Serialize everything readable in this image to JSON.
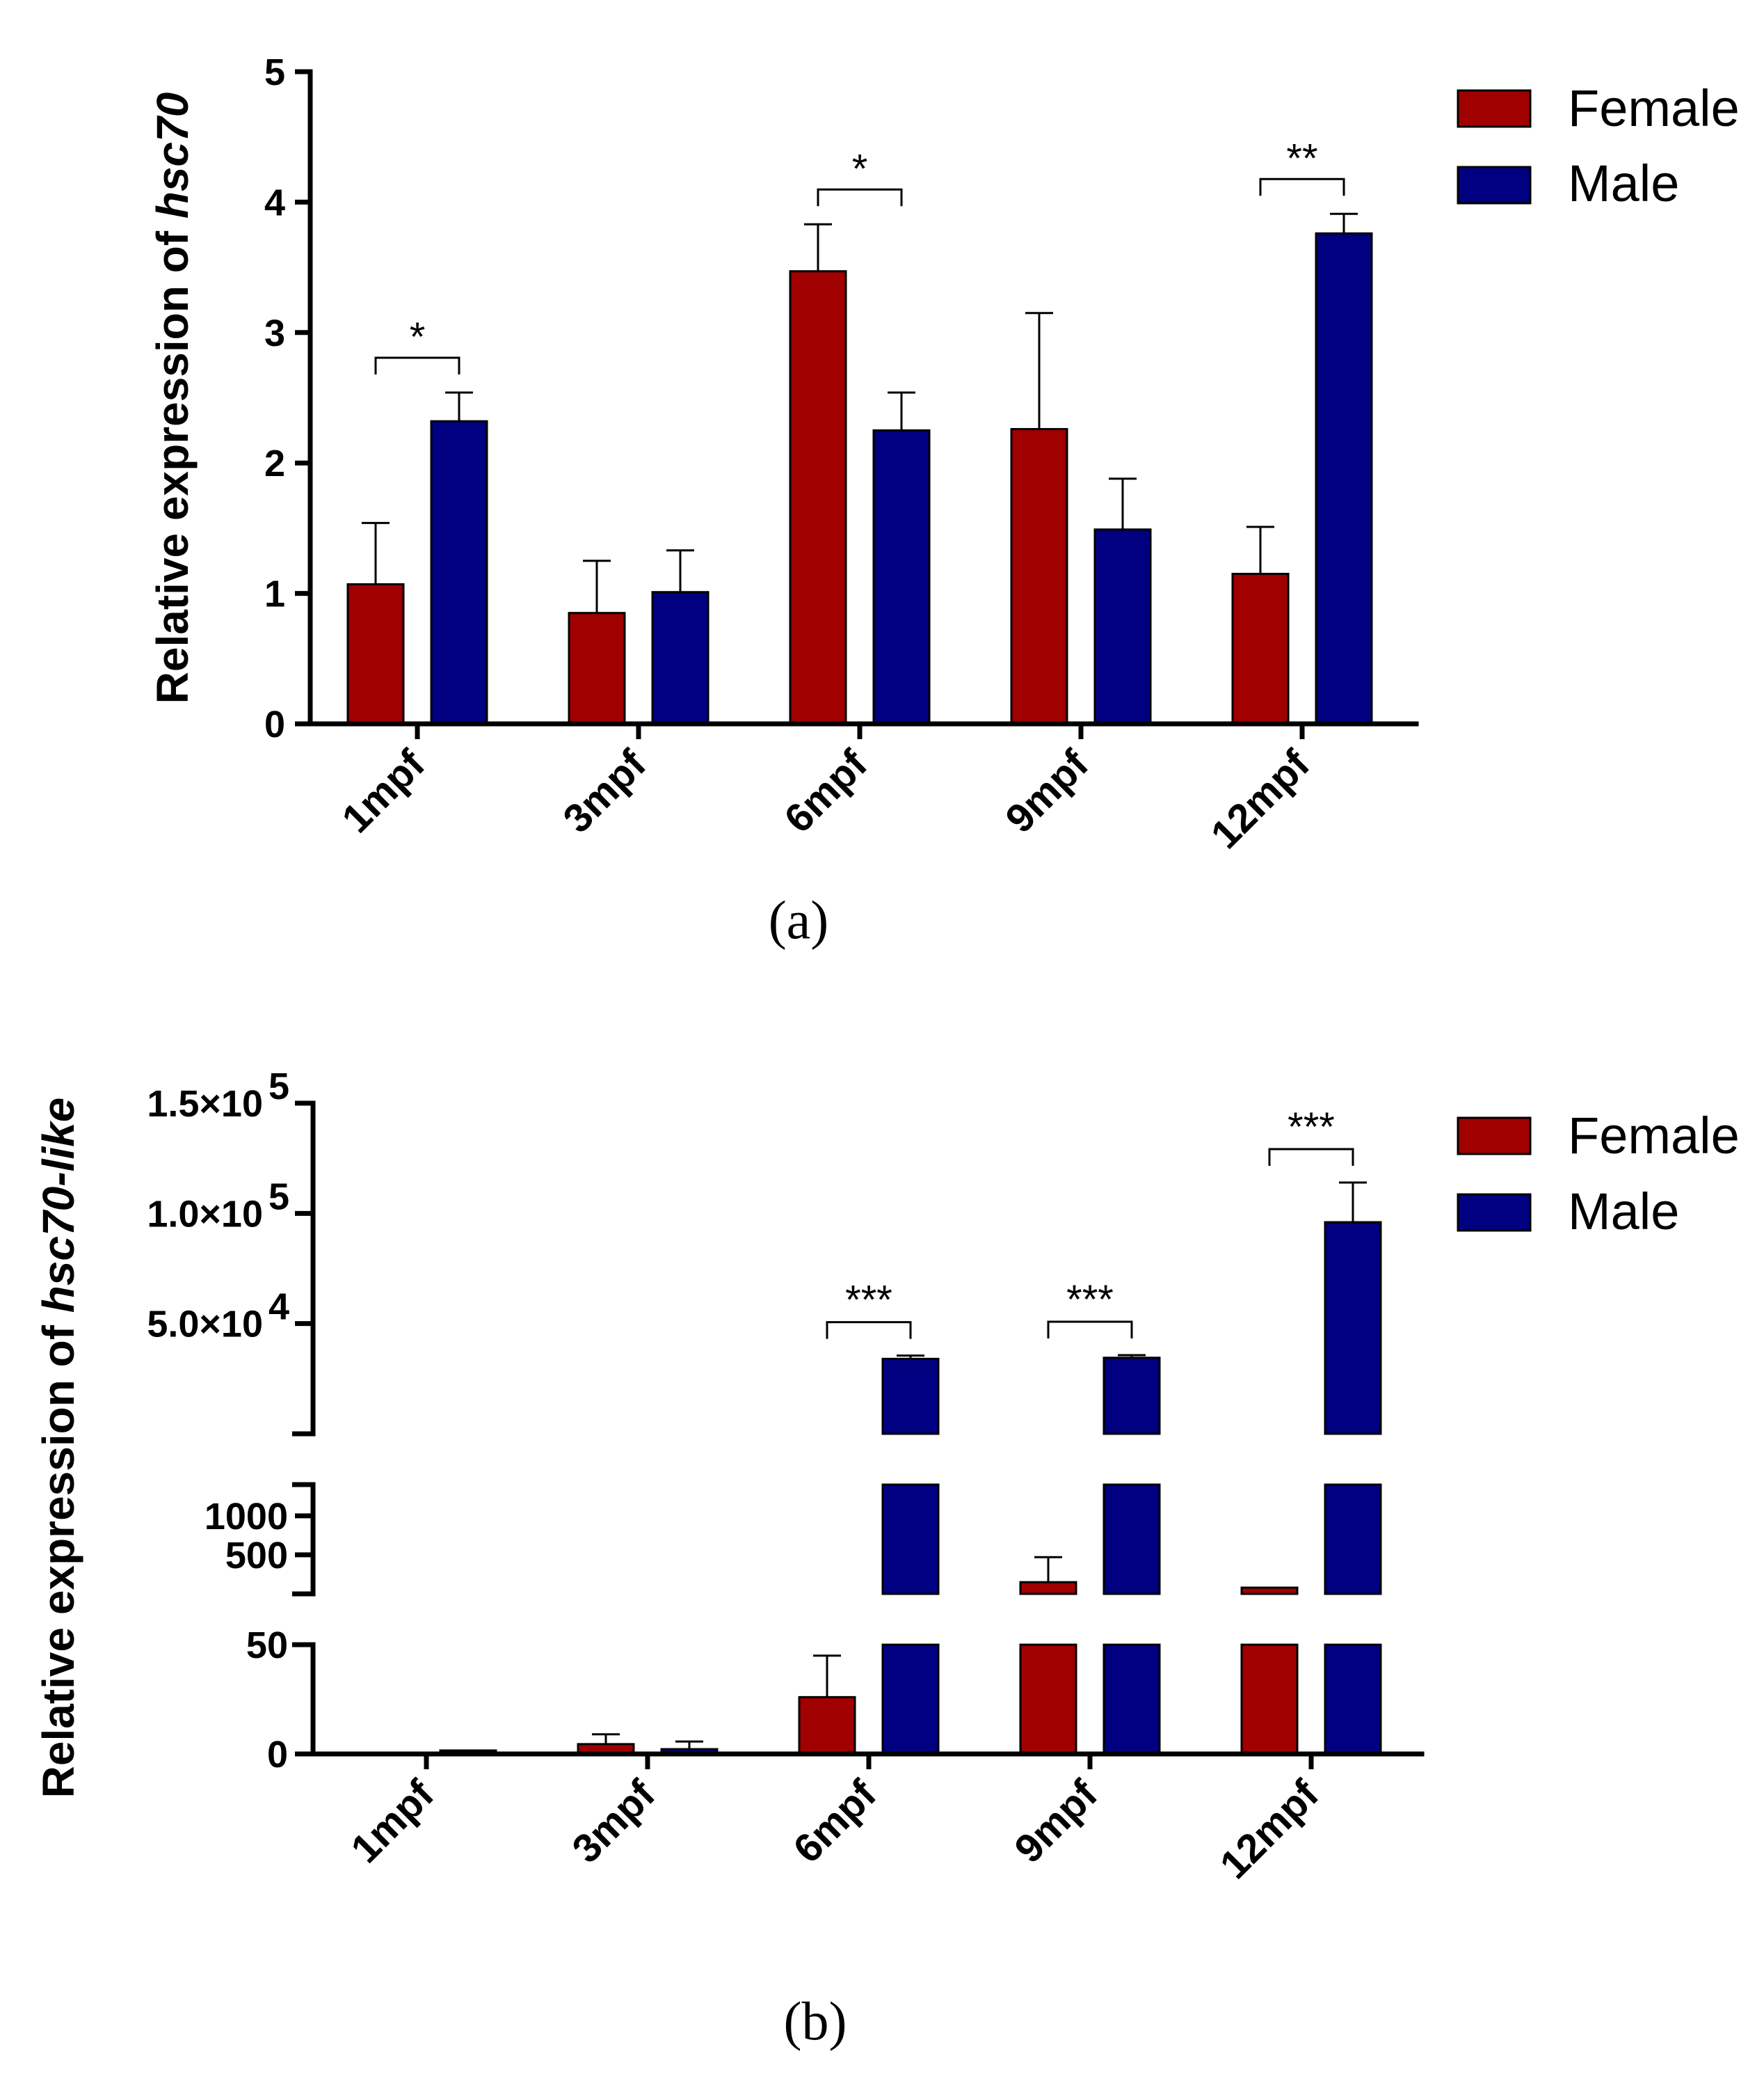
{
  "chart_data": [
    {
      "type": "bar",
      "caption": "(a)",
      "ylabel_prefix": "Relative expression of ",
      "ylabel_gene": "hsc70",
      "categories": [
        "1mpf",
        "3mpf",
        "6mpf",
        "9mpf",
        "12mpf"
      ],
      "series": [
        {
          "name": "Female",
          "color": "#a00000",
          "values": [
            1.07,
            0.85,
            3.47,
            2.26,
            1.15
          ],
          "errors": [
            0.47,
            0.4,
            0.36,
            0.89,
            0.36
          ]
        },
        {
          "name": "Male",
          "color": "#000080",
          "values": [
            2.32,
            1.01,
            2.25,
            1.49,
            3.76
          ],
          "errors": [
            0.22,
            0.32,
            0.29,
            0.39,
            0.15
          ]
        }
      ],
      "ylim": [
        0,
        5
      ],
      "yticks": [
        "0",
        "1",
        "2",
        "3",
        "4",
        "5"
      ],
      "significance": [
        {
          "category_index": 0,
          "label": "*"
        },
        {
          "category_index": 2,
          "label": "*"
        },
        {
          "category_index": 4,
          "label": "**"
        }
      ]
    },
    {
      "type": "bar",
      "caption": "(b)",
      "ylabel_prefix": "Relative expression of ",
      "ylabel_gene": "hsc70-like",
      "categories": [
        "1mpf",
        "3mpf",
        "6mpf",
        "9mpf",
        "12mpf"
      ],
      "series": [
        {
          "name": "Female",
          "color": "#a00000",
          "values": [
            0,
            4.5,
            26,
            150,
            80
          ],
          "errors": [
            0,
            4.5,
            19,
            320,
            0
          ]
        },
        {
          "name": "Male",
          "color": "#000080",
          "values": [
            1.6,
            2.2,
            34000,
            34500,
            96000
          ],
          "errors": [
            0,
            3.5,
            1500,
            1200,
            18000
          ]
        }
      ],
      "axis_breaks": [
        {
          "segment": "low",
          "ylim": [
            0,
            50
          ],
          "ticks": [
            "0",
            "50"
          ]
        },
        {
          "segment": "mid",
          "ylim": [
            0,
            1400
          ],
          "ticks": [
            "500",
            "1000"
          ]
        },
        {
          "segment": "high",
          "ylim": [
            0,
            150000
          ],
          "ticks": [
            "5.0×10",
            "1.0×10",
            "1.5×10"
          ],
          "tick_exponents": [
            "4",
            "5",
            "5"
          ]
        }
      ],
      "significance": [
        {
          "category_index": 2,
          "label": "***"
        },
        {
          "category_index": 3,
          "label": "***"
        },
        {
          "category_index": 4,
          "label": "***"
        }
      ]
    }
  ]
}
